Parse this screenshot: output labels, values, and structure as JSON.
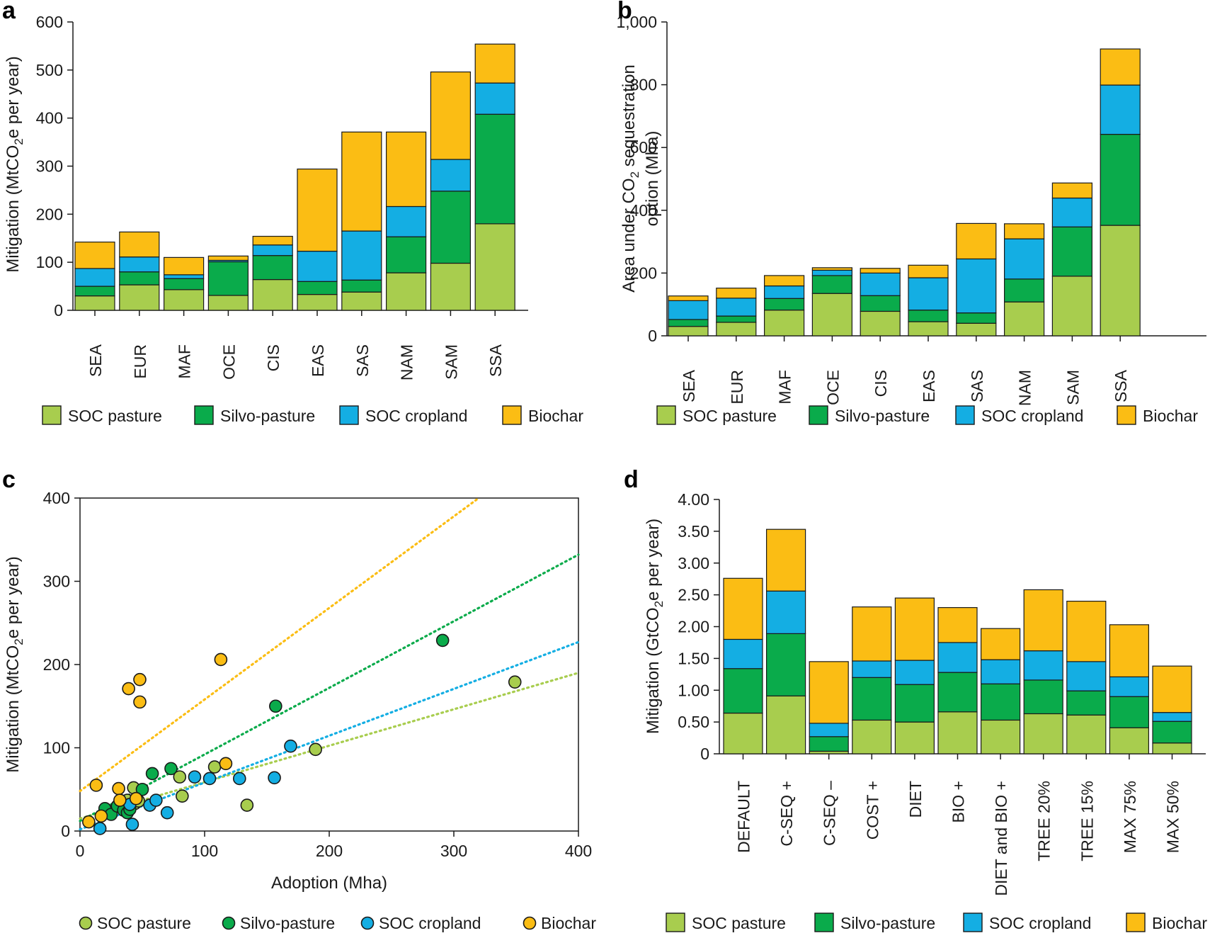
{
  "colors": {
    "soc_pasture": "#a8cd4e",
    "silvo_pasture": "#0aab4b",
    "soc_cropland": "#14aee3",
    "biochar": "#fbbd14"
  },
  "legend_labels": [
    "SOC pasture",
    "Silvo-pasture",
    "SOC cropland",
    "Biochar"
  ],
  "chart_data": [
    {
      "id": "a",
      "panel_letter": "a",
      "type": "bar",
      "stacked": true,
      "ylabel": "Mitigation (MtCO2e per year)",
      "ylabel_main": "Mitigation (MtCO",
      "ylabel_sub": "2",
      "ylabel_tail": "e per year)",
      "ylim": [
        0,
        600
      ],
      "yticks": [
        "0",
        "100",
        "200",
        "300",
        "400",
        "500",
        "600"
      ],
      "ytick_values": [
        0,
        100,
        200,
        300,
        400,
        500,
        600
      ],
      "categories": [
        "SEA",
        "EUR",
        "MAF",
        "OCE",
        "CIS",
        "EAS",
        "SAS",
        "NAM",
        "SAM",
        "SSA"
      ],
      "series": [
        {
          "name": "SOC pasture",
          "values": [
            30,
            53,
            43,
            31,
            64,
            33,
            38,
            78,
            98,
            180
          ]
        },
        {
          "name": "Silvo-pasture",
          "values": [
            20,
            27,
            23,
            70,
            50,
            27,
            25,
            75,
            150,
            228
          ]
        },
        {
          "name": "SOC cropland",
          "values": [
            37,
            31,
            8,
            3,
            22,
            63,
            102,
            63,
            66,
            65
          ]
        },
        {
          "name": "Biochar",
          "values": [
            55,
            52,
            36,
            9,
            18,
            171,
            206,
            155,
            182,
            81
          ]
        }
      ]
    },
    {
      "id": "b",
      "panel_letter": "b",
      "type": "bar",
      "stacked": true,
      "ylabel": "Area under CO2 sequestration option (Mha)",
      "ylabel_line1_main": "Area under CO",
      "ylabel_line1_sub": "2",
      "ylabel_line1_tail": " sequestration",
      "ylabel_line2": "option (Mha)",
      "ylim": [
        0,
        1000
      ],
      "yticks": [
        "0",
        "200",
        "400",
        "600",
        "800",
        "1,000"
      ],
      "ytick_values": [
        0,
        200,
        400,
        600,
        800,
        1000
      ],
      "categories": [
        "SEA",
        "EUR",
        "MAF",
        "OCE",
        "CIS",
        "EAS",
        "SAS",
        "NAM",
        "SAM",
        "SSA"
      ],
      "series": [
        {
          "name": "SOC pasture",
          "values": [
            30,
            43,
            82,
            135,
            78,
            45,
            40,
            108,
            190,
            352
          ]
        },
        {
          "name": "Silvo-pasture",
          "values": [
            22,
            20,
            37,
            57,
            50,
            37,
            33,
            73,
            157,
            290
          ]
        },
        {
          "name": "SOC cropland",
          "values": [
            60,
            57,
            40,
            17,
            72,
            103,
            172,
            128,
            92,
            157
          ]
        },
        {
          "name": "Biochar",
          "values": [
            15,
            32,
            33,
            8,
            15,
            40,
            113,
            48,
            48,
            115
          ]
        }
      ]
    },
    {
      "id": "c",
      "panel_letter": "c",
      "type": "scatter",
      "xlabel": "Adoption (Mha)",
      "ylabel": "Mitigation (MtCO2e per year)",
      "ylabel_main": "Mitigation (MtCO",
      "ylabel_sub": "2",
      "ylabel_tail": "e per year)",
      "xlim": [
        0,
        400
      ],
      "ylim": [
        0,
        400
      ],
      "xticks": [
        "0",
        "100",
        "200",
        "300",
        "400"
      ],
      "xtick_values": [
        0,
        100,
        200,
        300,
        400
      ],
      "yticks": [
        "0",
        "100",
        "200",
        "300",
        "400"
      ],
      "ytick_values": [
        0,
        100,
        200,
        300,
        400
      ],
      "series": [
        {
          "name": "SOC pasture",
          "x": [
            43,
            44,
            30,
            80,
            82,
            108,
            189,
            349,
            134,
            38,
            47
          ],
          "y": [
            52,
            33,
            30,
            65,
            42,
            77,
            98,
            179,
            31,
            37,
            36
          ],
          "trend": [
            [
              0,
              15
            ],
            [
              400,
              190
            ]
          ]
        },
        {
          "name": "Silvo-pasture",
          "x": [
            20,
            25,
            30,
            35,
            38,
            50,
            58,
            73,
            157,
            291,
            40
          ],
          "y": [
            27,
            20,
            30,
            25,
            22,
            50,
            69,
            75,
            150,
            229,
            26
          ],
          "trend": [
            [
              0,
              12
            ],
            [
              400,
              332
            ]
          ]
        },
        {
          "name": "SOC cropland",
          "x": [
            16,
            42,
            56,
            61,
            70,
            92,
            104,
            128,
            156,
            169,
            40
          ],
          "y": [
            3,
            8,
            31,
            37,
            22,
            65,
            63,
            63,
            64,
            102,
            32
          ],
          "trend": [
            [
              0,
              2
            ],
            [
              400,
              227
            ]
          ]
        },
        {
          "name": "Biochar",
          "x": [
            7,
            13,
            17,
            31,
            32,
            39,
            45,
            48,
            48,
            113,
            117
          ],
          "y": [
            11,
            55,
            18,
            51,
            37,
            171,
            39,
            182,
            155,
            206,
            81
          ],
          "trend": [
            [
              0,
              48
            ],
            [
              320,
              400
            ]
          ]
        }
      ]
    },
    {
      "id": "d",
      "panel_letter": "d",
      "type": "bar",
      "stacked": true,
      "ylabel": "Mitigation (GtCO2e per year)",
      "ylabel_main": "Mitigation (GtCO",
      "ylabel_sub": "2",
      "ylabel_tail": "e per year)",
      "ylim": [
        0,
        4
      ],
      "yticks": [
        "0",
        "0.50",
        "1.00",
        "1.50",
        "2.00",
        "2.50",
        "3.00",
        "3.50",
        "4.00"
      ],
      "ytick_values": [
        0,
        0.5,
        1,
        1.5,
        2,
        2.5,
        3,
        3.5,
        4
      ],
      "categories": [
        "DEFAULT",
        "C-SEQ +",
        "C-SEQ –",
        "COST +",
        "DIET",
        "BIO +",
        "DIET and BIO +",
        "TREE 20%",
        "TREE 15%",
        "MAX 75%",
        "MAX 50%"
      ],
      "series": [
        {
          "name": "SOC pasture",
          "values": [
            0.64,
            0.91,
            0.04,
            0.53,
            0.5,
            0.66,
            0.53,
            0.63,
            0.61,
            0.41,
            0.17
          ]
        },
        {
          "name": "Silvo-pasture",
          "values": [
            0.7,
            0.98,
            0.23,
            0.67,
            0.59,
            0.62,
            0.57,
            0.53,
            0.38,
            0.49,
            0.34
          ]
        },
        {
          "name": "SOC cropland",
          "values": [
            0.46,
            0.67,
            0.21,
            0.26,
            0.38,
            0.47,
            0.38,
            0.46,
            0.46,
            0.31,
            0.14
          ]
        },
        {
          "name": "Biochar",
          "values": [
            0.96,
            0.97,
            0.97,
            0.85,
            0.98,
            0.55,
            0.49,
            0.96,
            0.95,
            0.82,
            0.73
          ]
        }
      ]
    }
  ]
}
